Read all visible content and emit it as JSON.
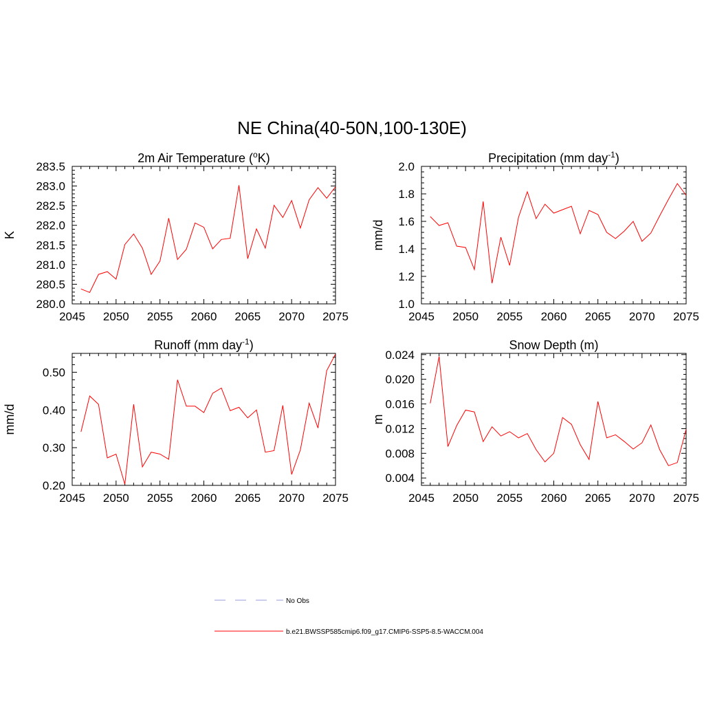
{
  "page_title": "NE China(40-50N,100-130E)",
  "colors": {
    "series": "#ff0000",
    "no_obs": "#9999dd",
    "axis": "#000000"
  },
  "chart_data": [
    {
      "type": "line",
      "title": "2m Air Temperature (",
      "title_sup": "o",
      "title_tail": "K)",
      "xlabel": "",
      "ylabel": "K",
      "xlim": [
        2045,
        2075
      ],
      "ylim": [
        280.0,
        283.5
      ],
      "xticks": [
        "2045",
        "2050",
        "2055",
        "2060",
        "2065",
        "2070",
        "2075"
      ],
      "yticks": [
        "280.0",
        "280.5",
        "281.0",
        "281.5",
        "282.0",
        "282.5",
        "283.0",
        "283.5"
      ],
      "x": [
        2046,
        2047,
        2048,
        2049,
        2050,
        2051,
        2052,
        2053,
        2054,
        2055,
        2056,
        2057,
        2058,
        2059,
        2060,
        2061,
        2062,
        2063,
        2064,
        2065,
        2066,
        2067,
        2068,
        2069,
        2070,
        2071,
        2072,
        2073,
        2074,
        2075
      ],
      "series": [
        {
          "name": "b.e21.BWSSP585cmip6.f09_g17.CMIP6-SSP5-8.5-WACCM.004",
          "values": [
            280.38,
            280.29,
            280.75,
            280.82,
            280.63,
            281.51,
            281.78,
            281.42,
            280.75,
            281.09,
            282.18,
            281.13,
            281.39,
            282.06,
            281.95,
            281.4,
            281.64,
            281.67,
            283.02,
            281.15,
            281.91,
            281.42,
            282.51,
            282.2,
            282.63,
            281.93,
            282.65,
            282.96,
            282.69,
            282.98
          ]
        }
      ]
    },
    {
      "type": "line",
      "title": "Precipitation (mm day",
      "title_sup": "-1",
      "title_tail": ")",
      "xlabel": "",
      "ylabel": "mm/d",
      "xlim": [
        2045,
        2075
      ],
      "ylim": [
        1.0,
        2.0
      ],
      "xticks": [
        "2045",
        "2050",
        "2055",
        "2060",
        "2065",
        "2070",
        "2075"
      ],
      "yticks": [
        "1.0",
        "1.2",
        "1.4",
        "1.6",
        "1.8",
        "2.0"
      ],
      "x": [
        2046,
        2047,
        2048,
        2049,
        2050,
        2051,
        2052,
        2053,
        2054,
        2055,
        2056,
        2057,
        2058,
        2059,
        2060,
        2061,
        2062,
        2063,
        2064,
        2065,
        2066,
        2067,
        2068,
        2069,
        2070,
        2071,
        2072,
        2073,
        2074,
        2075
      ],
      "series": [
        {
          "name": "b.e21.BWSSP585cmip6.f09_g17.CMIP6-SSP5-8.5-WACCM.004",
          "values": [
            1.635,
            1.57,
            1.59,
            1.42,
            1.41,
            1.25,
            1.745,
            1.15,
            1.485,
            1.28,
            1.63,
            1.815,
            1.62,
            1.725,
            1.66,
            1.685,
            1.71,
            1.51,
            1.68,
            1.65,
            1.52,
            1.475,
            1.53,
            1.6,
            1.455,
            1.515,
            1.64,
            1.76,
            1.875,
            1.79
          ]
        }
      ]
    },
    {
      "type": "line",
      "title": "Runoff (mm day",
      "title_sup": "-1",
      "title_tail": ")",
      "xlabel": "",
      "ylabel": "mm/d",
      "xlim": [
        2045,
        2075
      ],
      "ylim": [
        0.2,
        0.55
      ],
      "xticks": [
        "2045",
        "2050",
        "2055",
        "2060",
        "2065",
        "2070",
        "2075"
      ],
      "yticks": [
        "0.20",
        "0.30",
        "0.40",
        "0.50"
      ],
      "x": [
        2046,
        2047,
        2048,
        2049,
        2050,
        2051,
        2052,
        2053,
        2054,
        2055,
        2056,
        2057,
        2058,
        2059,
        2060,
        2061,
        2062,
        2063,
        2064,
        2065,
        2066,
        2067,
        2068,
        2069,
        2070,
        2071,
        2072,
        2073,
        2074,
        2075
      ],
      "series": [
        {
          "name": "b.e21.BWSSP585cmip6.f09_g17.CMIP6-SSP5-8.5-WACCM.004",
          "values": [
            0.342,
            0.437,
            0.415,
            0.273,
            0.283,
            0.203,
            0.415,
            0.249,
            0.288,
            0.283,
            0.269,
            0.48,
            0.41,
            0.41,
            0.393,
            0.444,
            0.458,
            0.398,
            0.407,
            0.379,
            0.4,
            0.288,
            0.292,
            0.412,
            0.229,
            0.294,
            0.418,
            0.352,
            0.504,
            0.548
          ]
        }
      ]
    },
    {
      "type": "line",
      "title": "Snow Depth (m)",
      "title_sup": "",
      "title_tail": "",
      "xlabel": "",
      "ylabel": "m",
      "xlim": [
        2045,
        2075
      ],
      "ylim": [
        0.0028,
        0.0242
      ],
      "xticks": [
        "2045",
        "2050",
        "2055",
        "2060",
        "2065",
        "2070",
        "2075"
      ],
      "yticks": [
        "0.004",
        "0.008",
        "0.012",
        "0.016",
        "0.020",
        "0.024"
      ],
      "x": [
        2046,
        2047,
        2048,
        2049,
        2050,
        2051,
        2052,
        2053,
        2054,
        2055,
        2056,
        2057,
        2058,
        2059,
        2060,
        2061,
        2062,
        2063,
        2064,
        2065,
        2066,
        2067,
        2068,
        2069,
        2070,
        2071,
        2072,
        2073,
        2074,
        2075
      ],
      "series": [
        {
          "name": "b.e21.BWSSP585cmip6.f09_g17.CMIP6-SSP5-8.5-WACCM.004",
          "values": [
            0.0161,
            0.0237,
            0.0091,
            0.0125,
            0.015,
            0.0147,
            0.0099,
            0.0123,
            0.0108,
            0.0115,
            0.0105,
            0.0112,
            0.0086,
            0.0066,
            0.008,
            0.0138,
            0.0127,
            0.0094,
            0.007,
            0.0164,
            0.0105,
            0.011,
            0.0099,
            0.0087,
            0.0097,
            0.0126,
            0.0086,
            0.006,
            0.0065,
            0.0119
          ]
        }
      ]
    }
  ],
  "legend": [
    {
      "label": "No Obs",
      "style": "dashed"
    },
    {
      "label": "b.e21.BWSSP585cmip6.f09_g17.CMIP6-SSP5-8.5-WACCM.004",
      "style": "solid"
    }
  ]
}
